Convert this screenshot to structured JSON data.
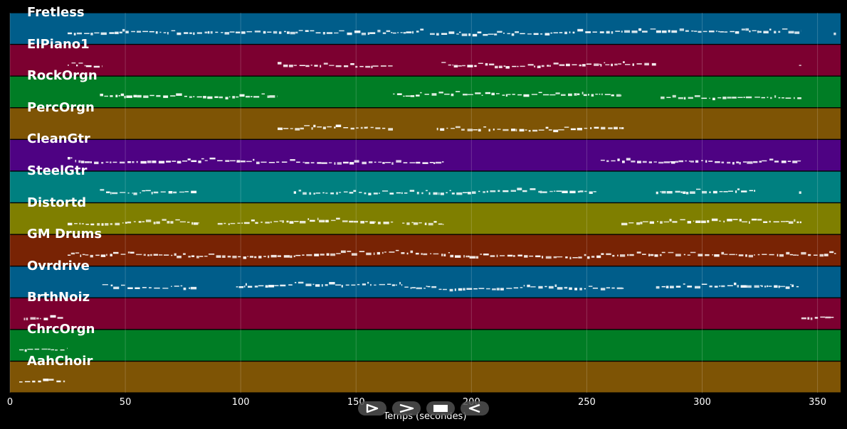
{
  "chart_data": {
    "type": "piano-roll",
    "xlabel": "Temps (secondes)",
    "xlim": [
      0,
      360
    ],
    "xticks": [
      0,
      50,
      100,
      150,
      200,
      250,
      300,
      350
    ],
    "grid": true,
    "tracks": [
      {
        "name": "Fretless",
        "color": "#005d8a",
        "segments": [
          [
            25,
            180
          ],
          [
            182,
            343
          ],
          [
            357,
            358
          ]
        ]
      },
      {
        "name": "ElPiano1",
        "color": "#7c0030",
        "segments": [
          [
            25,
            40
          ],
          [
            116,
            166
          ],
          [
            187,
            280
          ],
          [
            342,
            343
          ]
        ]
      },
      {
        "name": "RockOrgn",
        "color": "#007d25",
        "segments": [
          [
            39,
            116
          ],
          [
            166,
            265
          ],
          [
            282,
            343
          ]
        ]
      },
      {
        "name": "PercOrgn",
        "color": "#7e5405",
        "segments": [
          [
            116,
            166
          ],
          [
            185,
            266
          ]
        ]
      },
      {
        "name": "CleanGtr",
        "color": "#4e0283",
        "segments": [
          [
            25,
            188
          ],
          [
            256,
            343
          ]
        ]
      },
      {
        "name": "SteelGtr",
        "color": "#008080",
        "segments": [
          [
            39,
            81
          ],
          [
            123,
            255
          ],
          [
            280,
            323
          ],
          [
            342,
            343
          ]
        ]
      },
      {
        "name": "Distortd",
        "color": "#7f7f00",
        "segments": [
          [
            25,
            82
          ],
          [
            90,
            166
          ],
          [
            170,
            188
          ],
          [
            265,
            343
          ]
        ]
      },
      {
        "name": "GM Drums",
        "color": "#782304",
        "segments": [
          [
            25,
            358
          ]
        ]
      },
      {
        "name": "Ovrdrive",
        "color": "#005d8a",
        "segments": [
          [
            40,
            81
          ],
          [
            98,
            170
          ],
          [
            171,
            266
          ],
          [
            280,
            343
          ]
        ]
      },
      {
        "name": "BrthNoiz",
        "color": "#7c0030",
        "segments": [
          [
            6,
            23
          ],
          [
            343,
            357
          ]
        ]
      },
      {
        "name": "ChrcOrgn",
        "color": "#007d25",
        "segments": [
          [
            4,
            25
          ]
        ]
      },
      {
        "name": "AahChoir",
        "color": "#7e5405",
        "segments": [
          [
            4,
            24
          ]
        ]
      }
    ]
  },
  "controls": [
    "play-icon",
    "fast-forward-icon",
    "stop-icon",
    "rewind-icon"
  ]
}
